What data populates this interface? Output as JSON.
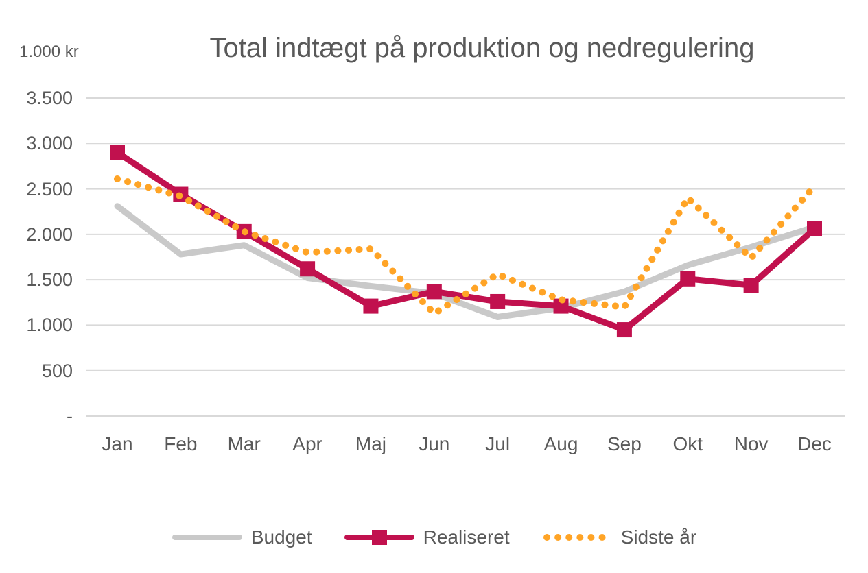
{
  "header": {
    "unit_label": "1.000 kr",
    "title": "Total indtægt på produktion og nedregulering"
  },
  "chart_data": {
    "type": "line",
    "title": "Total indtægt på produktion og nedregulering",
    "ylabel": "1.000 kr",
    "categories": [
      "Jan",
      "Feb",
      "Mar",
      "Apr",
      "Maj",
      "Jun",
      "Jul",
      "Aug",
      "Sep",
      "Okt",
      "Nov",
      "Dec"
    ],
    "series": [
      {
        "name": "Budget",
        "color": "#C9C9C9",
        "style": "solid",
        "marker": "none",
        "values": [
          2310,
          1780,
          1880,
          1520,
          1430,
          1350,
          1090,
          1190,
          1370,
          1660,
          1860,
          2080
        ]
      },
      {
        "name": "Realiseret",
        "color": "#C1114E",
        "color_name": "crimson",
        "style": "solid",
        "marker": "square",
        "values": [
          2900,
          2440,
          2030,
          1620,
          1210,
          1370,
          1260,
          1210,
          950,
          1510,
          1440,
          2060
        ]
      },
      {
        "name": "Sidste år",
        "color": "#FFA426",
        "color_name": "orange",
        "style": "dotted",
        "marker": "none",
        "values": [
          2610,
          2420,
          2030,
          1800,
          1840,
          1130,
          1560,
          1280,
          1200,
          2400,
          1740,
          2530
        ]
      }
    ],
    "ylim": [
      0,
      3500
    ],
    "ytick_step": 500,
    "ytick_labels_top_to_bottom": [
      "3.500",
      "3.000",
      "2.500",
      "2.000",
      "1.500",
      "1.000",
      "500",
      "-"
    ],
    "grid": true,
    "gridline_color": "#D9D9D9",
    "text_color": "#595959",
    "legend_position": "bottom"
  }
}
